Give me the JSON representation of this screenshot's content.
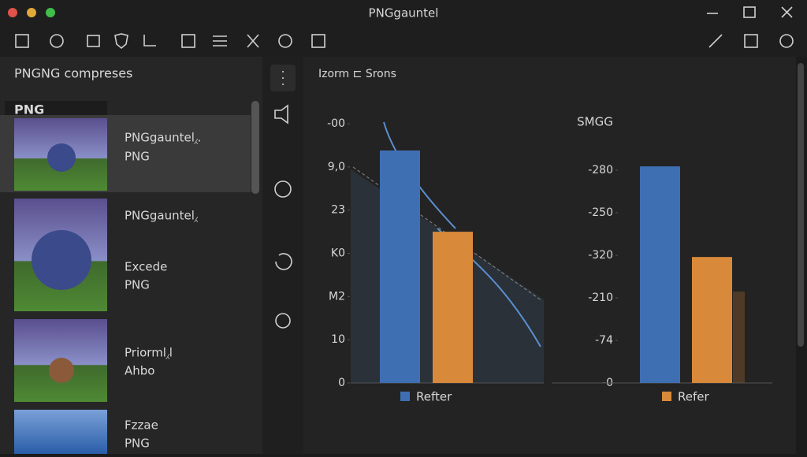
{
  "window": {
    "title": "PNGgauntel"
  },
  "sidebar": {
    "heading": "PNGNG compreses",
    "filter": "PNG",
    "items": [
      {
        "lines": [
          "PNGgauntel⁁.",
          "PNG"
        ]
      },
      {
        "lines": [
          "PNGgauntel⁁",
          "Excede",
          "PNG"
        ]
      },
      {
        "lines": [
          "Priorml⁁l",
          "Ahbo"
        ]
      },
      {
        "lines": [
          "Fzzae",
          "PNG"
        ]
      }
    ]
  },
  "panel": {
    "header": "Izorm ⊏ Srons"
  },
  "chart_data": [
    {
      "type": "bar",
      "values": [
        5.38,
        3.5
      ],
      "colors": [
        "#3f6fb3",
        "#d9893a"
      ],
      "legend": "Refter",
      "legend_color": "#3f6fb3",
      "ylim": [
        0,
        6
      ],
      "yticks": [
        {
          "value": 0,
          "label": "0"
        },
        {
          "value": 1,
          "label": "10"
        },
        {
          "value": 2,
          "label": "M2"
        },
        {
          "value": 3,
          "label": "K0"
        },
        {
          "value": 4,
          "label": "23"
        },
        {
          "value": 5,
          "label": "9,0"
        },
        {
          "value": 6,
          "label": "-00"
        }
      ]
    },
    {
      "type": "bar",
      "title": "SMGG",
      "values": [
        5.09,
        2.96
      ],
      "colors": [
        "#3f6fb3",
        "#d9893a"
      ],
      "legend": "Refer",
      "legend_color": "#d9893a",
      "ylim": [
        0,
        5
      ],
      "yticks": [
        {
          "value": 0,
          "label": "-0"
        },
        {
          "value": 1,
          "label": "-74"
        },
        {
          "value": 2,
          "label": "-210"
        },
        {
          "value": 3,
          "label": "-320"
        },
        {
          "value": 4,
          "label": "-250"
        },
        {
          "value": 5,
          "label": "-280"
        }
      ]
    }
  ]
}
